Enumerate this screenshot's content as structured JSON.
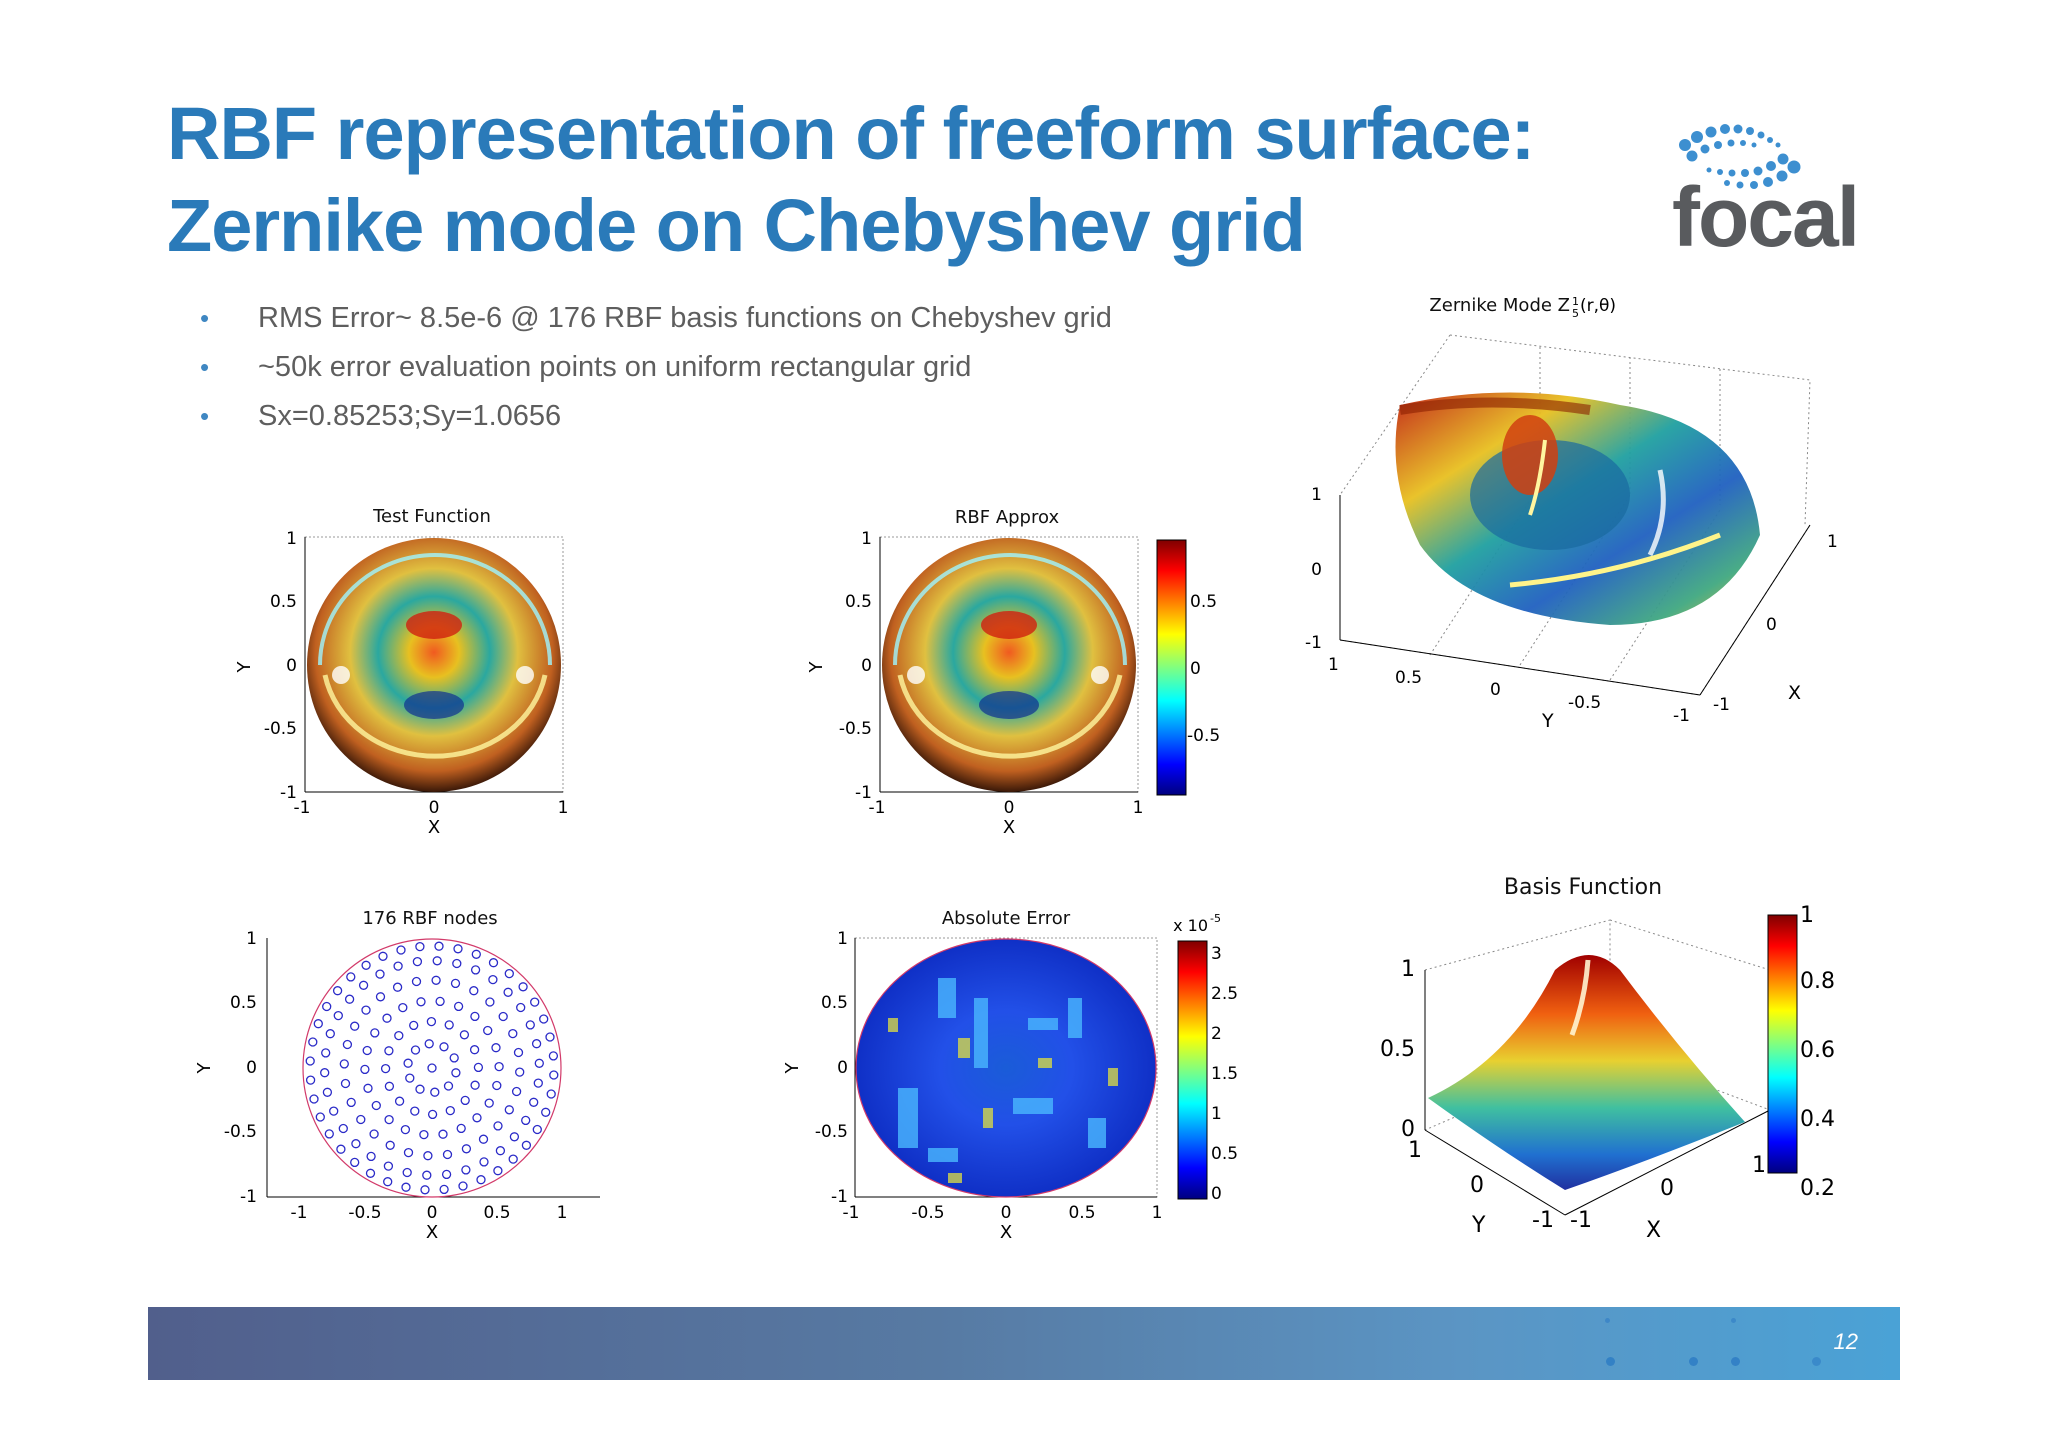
{
  "title": {
    "line1": "RBF representation of freeform surface:",
    "line2": "Zernike mode on Chebyshev grid"
  },
  "logo": {
    "text": "focal",
    "icon": "dotted-ellipse-logo"
  },
  "bullets": [
    "RMS Error~ 8.5e-6 @ 176  RBF basis functions on Chebyshev  grid",
    "~50k error evaluation points on uniform rectangular  grid",
    "Sx=0.85253;Sy=1.0656"
  ],
  "plots": {
    "test_function": {
      "title": "Test Function",
      "xlabel": "X",
      "ylabel": "Y",
      "yticks": [
        "1",
        "0.5",
        "0",
        "-0.5",
        "-1"
      ],
      "xticks": [
        "-1",
        "0",
        "1"
      ]
    },
    "rbf_approx": {
      "title": "RBF Approx",
      "xlabel": "X",
      "ylabel": "Y",
      "yticks": [
        "1",
        "0.5",
        "0",
        "-0.5",
        "-1"
      ],
      "xticks": [
        "-1",
        "0",
        "1"
      ],
      "colorbar": [
        "0.5",
        "0",
        "-0.5"
      ]
    },
    "zernike_mode": {
      "title": "Zernike Mode Z",
      "title_sup": "1",
      "title_sub": "5",
      "title_tail": "(r,θ)",
      "zticks": [
        "1",
        "0",
        "-1"
      ],
      "yticks": [
        "1",
        "0.5",
        "0",
        "-0.5",
        "-1"
      ],
      "xticks": [
        "1",
        "0",
        "-1"
      ],
      "xlabel": "X",
      "ylabel": "Y"
    },
    "rbf_nodes": {
      "title": "176 RBF nodes",
      "xlabel": "X",
      "ylabel": "Y",
      "yticks": [
        "1",
        "0.5",
        "0",
        "-0.5",
        "-1"
      ],
      "xticks": [
        "-1",
        "-0.5",
        "0",
        "0.5",
        "1"
      ]
    },
    "absolute_error": {
      "title": "Absolute Error",
      "xlabel": "X",
      "ylabel": "Y",
      "yticks": [
        "1",
        "0.5",
        "0",
        "-0.5",
        "-1"
      ],
      "xticks": [
        "-1",
        "-0.5",
        "0",
        "0.5",
        "1"
      ],
      "colorbar": [
        "3",
        "2.5",
        "2",
        "1.5",
        "1",
        "0.5",
        "0"
      ],
      "scale_base": "x 10",
      "scale_exp": "-5"
    },
    "basis_function": {
      "title": "Basis Function",
      "zticks": [
        "1",
        "0.5",
        "0"
      ],
      "yticks": [
        "1",
        "0",
        "-1"
      ],
      "xticks": [
        "-1",
        "0",
        "1"
      ],
      "xlabel": "X",
      "ylabel": "Y",
      "colorbar": [
        "1",
        "0.8",
        "0.6",
        "0.4",
        "0.2"
      ]
    }
  },
  "footer": {
    "page_number": "12"
  },
  "colors": {
    "title": "#2a7ab9",
    "bullet": "#3f87c2",
    "text": "#5e5e5e",
    "logo_grey": "#595b5e"
  }
}
